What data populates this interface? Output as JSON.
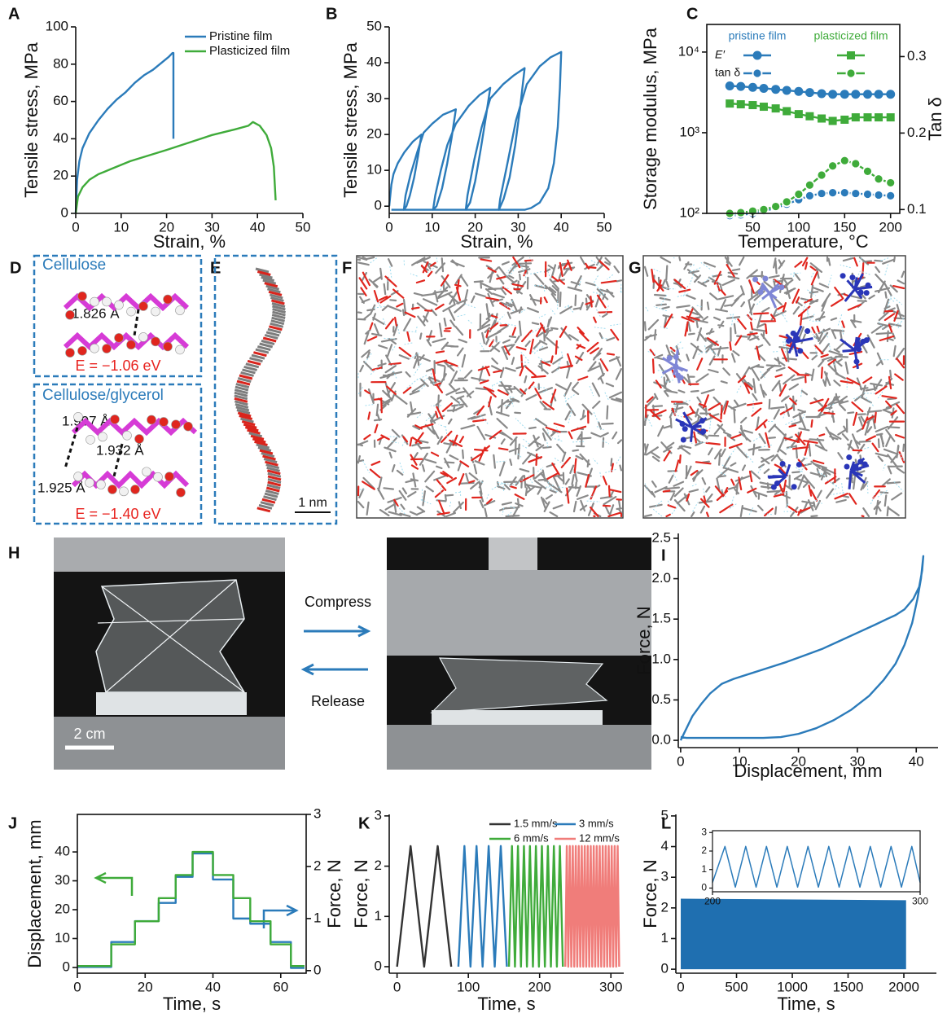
{
  "chart_data": [
    {
      "type": "line",
      "panel": "A",
      "xlabel": "Strain, %",
      "ylabel": "Tensile stress, MPa",
      "xlim": [
        0,
        50
      ],
      "xticks": [
        0,
        10,
        20,
        30,
        40,
        50
      ],
      "ylim": [
        0,
        100
      ],
      "yticks": [
        0,
        20,
        40,
        60,
        80,
        100
      ],
      "legend": "upper right",
      "legend_ncol": 1,
      "series": [
        {
          "name": "Pristine film",
          "color": "#2b7bba",
          "x": [
            0,
            0.3,
            0.8,
            1.5,
            3,
            5,
            7,
            9,
            11,
            13,
            15,
            17,
            19,
            20.5,
            21.3,
            21.5,
            21.5
          ],
          "values": [
            0,
            18,
            28,
            35,
            43,
            50,
            56,
            61,
            65,
            70,
            74,
            77,
            81,
            84,
            86,
            86,
            40
          ]
        },
        {
          "name": "Plasticized film",
          "color": "#3fab3a",
          "x": [
            0,
            0.5,
            1.5,
            3,
            5,
            8,
            12,
            16,
            20,
            25,
            30,
            35,
            38,
            39,
            40.5,
            42,
            43,
            43.6,
            44
          ],
          "values": [
            0,
            9,
            14,
            18,
            21,
            24,
            28,
            31,
            34,
            38,
            42,
            45,
            47,
            49,
            47,
            42,
            35,
            25,
            7
          ]
        }
      ]
    },
    {
      "type": "line",
      "panel": "B",
      "xlabel": "Strain, %",
      "ylabel": "Tensile stress, MPa",
      "xlim": [
        0,
        50
      ],
      "xticks": [
        0,
        10,
        20,
        30,
        40,
        50
      ],
      "ylim": [
        -2,
        50
      ],
      "yticks": [
        0,
        10,
        20,
        30,
        40,
        50
      ],
      "series": [
        {
          "color": "#2b7bba",
          "x": [
            0,
            0.5,
            1,
            2,
            3.5,
            5.5,
            7.5,
            6.7,
            5.8,
            4.8,
            4,
            3.4,
            3.8,
            5,
            6.5,
            8,
            10,
            12.5,
            15.5,
            14.5,
            13.5,
            12.3,
            11,
            10.2,
            10.7,
            12,
            13.5,
            15.5,
            18.5,
            21,
            23.5,
            22.5,
            21.3,
            20,
            18.8,
            17.8,
            18.2,
            19.8,
            21.5,
            23.5,
            26.5,
            29,
            31.5,
            30.5,
            29.3,
            28,
            26.6,
            25.5,
            25.8,
            27.5,
            29.5,
            32,
            35,
            37.5,
            40,
            39.7,
            39.2,
            38.3,
            37,
            35,
            33,
            31.5,
            25,
            15,
            5,
            0.5
          ],
          "values": [
            0,
            6,
            9,
            12,
            15,
            18,
            20,
            14,
            8,
            3,
            0,
            -1,
            3,
            9,
            15,
            20.5,
            23,
            25.5,
            27,
            19,
            12,
            5,
            0,
            -1,
            3,
            10,
            17,
            23,
            28,
            31,
            33,
            25,
            16,
            7,
            1,
            -1,
            3,
            13,
            22,
            30,
            34,
            36.5,
            38.5,
            28,
            17,
            8,
            2,
            -1,
            2,
            12,
            24,
            34,
            39,
            41.5,
            43,
            33,
            22,
            12,
            5,
            1,
            -0.5,
            -1,
            -1,
            -1,
            -1,
            -1
          ]
        }
      ]
    },
    {
      "type": "line",
      "panel": "C",
      "xlabel": "Temperature, °C",
      "ylabel": "Storage modulus, MPa",
      "y2label": "Tan δ",
      "xlim": [
        0,
        210
      ],
      "xticks": [
        50,
        100,
        150,
        200
      ],
      "ylim": [
        100,
        22000
      ],
      "ylog": true,
      "yticks": [
        {
          "value": 100,
          "label": "10²"
        },
        {
          "value": 1000,
          "label": "10³"
        },
        {
          "value": 10000,
          "label": "10⁴"
        }
      ],
      "y2lim": [
        0.095,
        0.342
      ],
      "y2ticks": [
        0.1,
        0.2,
        0.3
      ],
      "legend_header": [
        "pristine film",
        "plasticized film"
      ],
      "legend_rows": [
        "E′",
        "tan δ"
      ],
      "series": [
        {
          "color": "#2b7bba",
          "marker": "circle",
          "x": [
            25,
            37,
            50,
            62,
            75,
            87,
            100,
            112,
            125,
            137,
            150,
            162,
            175,
            187,
            200
          ],
          "values": [
            3800,
            3750,
            3650,
            3550,
            3450,
            3350,
            3250,
            3150,
            3050,
            3000,
            3000,
            3000,
            3000,
            3000,
            3000
          ]
        },
        {
          "color": "#2b7bba",
          "marker": "ring",
          "axis": "y2",
          "x": [
            25,
            37,
            50,
            62,
            75,
            87,
            100,
            112,
            125,
            137,
            150,
            162,
            175,
            187,
            200
          ],
          "values": [
            0.092,
            0.093,
            0.095,
            0.098,
            0.102,
            0.107,
            0.113,
            0.118,
            0.121,
            0.122,
            0.122,
            0.121,
            0.12,
            0.119,
            0.118
          ]
        },
        {
          "color": "#3fab3a",
          "marker": "square",
          "x": [
            25,
            37,
            50,
            62,
            75,
            87,
            100,
            112,
            125,
            137,
            150,
            162,
            175,
            187,
            200
          ],
          "values": [
            2300,
            2250,
            2200,
            2100,
            2000,
            1850,
            1700,
            1600,
            1500,
            1400,
            1450,
            1550,
            1550,
            1550,
            1550
          ]
        },
        {
          "color": "#3fab3a",
          "marker": "ring",
          "axis": "y2",
          "x": [
            25,
            37,
            50,
            62,
            75,
            87,
            100,
            112,
            125,
            137,
            150,
            162,
            175,
            187,
            200
          ],
          "values": [
            0.095,
            0.096,
            0.098,
            0.1,
            0.104,
            0.11,
            0.12,
            0.132,
            0.145,
            0.157,
            0.164,
            0.16,
            0.15,
            0.14,
            0.135
          ]
        }
      ]
    },
    {
      "type": "line",
      "panel": "I",
      "xlabel": "Displacement, mm",
      "ylabel": "Force, N",
      "xlim": [
        -0.4,
        43.7
      ],
      "xticks": [
        0,
        10,
        20,
        30,
        40
      ],
      "ylim": [
        -0.09,
        2.56
      ],
      "yticks": [
        {
          "value": 0,
          "label": "0.0"
        },
        0.5,
        {
          "value": 1,
          "label": "1.0"
        },
        1.5,
        {
          "value": 2,
          "label": "2.0"
        },
        2.5
      ],
      "series": [
        {
          "color": "#2b7bba",
          "x": [
            0,
            1,
            2,
            3.5,
            5,
            7,
            9,
            12,
            15,
            18,
            21,
            24,
            27,
            30,
            33,
            35,
            36.5,
            38,
            39.5,
            40.5,
            41,
            41.2,
            40.8,
            40.2,
            39.3,
            38,
            36.5,
            34.5,
            32,
            29,
            26,
            23,
            20,
            17,
            14,
            10,
            6,
            3,
            1,
            0
          ],
          "values": [
            0,
            0.15,
            0.3,
            0.45,
            0.58,
            0.7,
            0.76,
            0.83,
            0.9,
            0.97,
            1.05,
            1.13,
            1.23,
            1.33,
            1.43,
            1.5,
            1.55,
            1.62,
            1.75,
            1.9,
            2.1,
            2.28,
            2.0,
            1.75,
            1.45,
            1.18,
            0.95,
            0.75,
            0.55,
            0.38,
            0.25,
            0.15,
            0.08,
            0.04,
            0.03,
            0.03,
            0.03,
            0.03,
            0.03,
            0.04
          ]
        }
      ]
    },
    {
      "type": "line",
      "panel": "J",
      "xlabel": "Time, s",
      "ylabel": "Displacement, mm",
      "y2label": "Force, N",
      "xlim": [
        0,
        67.5
      ],
      "xticks": [
        0,
        20,
        40,
        60
      ],
      "ylim": [
        -2,
        53
      ],
      "yticks": [
        0,
        10,
        20,
        30,
        40
      ],
      "y2lim": [
        -0.05,
        3
      ],
      "y2ticks": [
        0,
        1,
        2,
        3
      ],
      "series": [
        {
          "color": "#2b7bba",
          "axis": "y2",
          "x": [
            0,
            10,
            10,
            17,
            17,
            24,
            24,
            29,
            29,
            34,
            34,
            40,
            40,
            46,
            46,
            51,
            51,
            57,
            57,
            63,
            63,
            67
          ],
          "values": [
            0.07,
            0.07,
            0.55,
            0.55,
            0.95,
            0.95,
            1.3,
            1.3,
            1.8,
            1.8,
            2.25,
            2.25,
            1.75,
            1.75,
            1.0,
            1.0,
            0.9,
            0.9,
            0.55,
            0.55,
            0.05,
            0.05
          ]
        },
        {
          "color": "#3fab3a",
          "x": [
            0,
            10,
            10,
            17,
            17,
            24,
            24,
            29,
            29,
            34,
            34,
            40,
            40,
            46,
            46,
            51,
            51,
            57,
            57,
            63,
            63,
            67
          ],
          "values": [
            0.5,
            0.5,
            8,
            8,
            16,
            16,
            24,
            24,
            32,
            32,
            40,
            40,
            32,
            32,
            24,
            24,
            16,
            16,
            8,
            8,
            0.5,
            0.5
          ]
        }
      ]
    },
    {
      "type": "line",
      "panel": "K",
      "xlabel": "Time, s",
      "ylabel": "Force, N",
      "xlim": [
        -11,
        318
      ],
      "xticks": [
        0,
        100,
        200,
        300
      ],
      "ylim": [
        -0.13,
        3.03
      ],
      "yticks": [
        0,
        1,
        2,
        3
      ],
      "legend": "upper right",
      "legend_ncol": 2,
      "series": [
        {
          "name": "1.5 mm/s",
          "color": "#333333",
          "x": [
            0,
            19,
            38,
            57,
            76
          ],
          "values": [
            0,
            2.4,
            0,
            2.4,
            0
          ]
        },
        {
          "name": "3 mm/s",
          "color": "#2b7bba",
          "x": [
            86,
            94.5,
            103,
            111.5,
            120,
            128.5,
            137,
            145.5,
            154
          ],
          "values": [
            0,
            2.4,
            0,
            2.4,
            0,
            2.4,
            0,
            2.4,
            0
          ]
        },
        {
          "name": "6 mm/s",
          "color": "#3fab3a",
          "x": [
            157,
            161.2,
            165.4,
            169.6,
            173.8,
            178,
            182.2,
            186.4,
            190.6,
            194.8,
            199,
            203.2,
            207.4,
            211.6,
            215.8,
            220,
            224.2,
            228.4,
            232.6
          ],
          "values": [
            0,
            2.4,
            0,
            2.4,
            0,
            2.4,
            0,
            2.4,
            0,
            2.4,
            0,
            2.4,
            0,
            2.4,
            0,
            2.4,
            0,
            2.4,
            0
          ]
        },
        {
          "name": "12 mm/s",
          "color": "#f07d7a",
          "x": [
            236,
            238.1,
            240.2,
            242.3,
            244.4,
            246.5,
            248.6,
            250.7,
            252.8,
            254.9,
            257,
            259.1,
            261.2,
            263.3,
            265.4,
            267.5,
            269.6,
            271.7,
            273.8,
            275.9,
            278,
            280.1,
            282.2,
            284.3,
            286.4,
            288.5,
            290.6,
            292.7,
            294.8,
            296.9,
            299,
            301.1,
            303.2,
            305.3,
            307.4,
            309.5,
            311.6
          ],
          "values": [
            0,
            2.4,
            0,
            2.4,
            0,
            2.4,
            0,
            2.4,
            0,
            2.4,
            0,
            2.4,
            0,
            2.4,
            0,
            2.4,
            0,
            2.4,
            0,
            2.4,
            0,
            2.4,
            0,
            2.4,
            0,
            2.4,
            0,
            2.4,
            0,
            2.4,
            0,
            2.4,
            0,
            2.4,
            0,
            2.4,
            0
          ]
        }
      ]
    },
    {
      "type": "area",
      "panel": "L",
      "xlabel": "Time, s",
      "ylabel": "Force, N",
      "xlim": [
        -44,
        2292
      ],
      "xticks": [
        0,
        500,
        1000,
        1500,
        2000
      ],
      "ylim": [
        -0.13,
        5.05
      ],
      "yticks": [
        0,
        1,
        2,
        3,
        4,
        5
      ],
      "series": [
        {
          "color": "#1f6fb0",
          "x": [
            0,
            2020
          ],
          "values": [
            2.3,
            2.25
          ],
          "lower": [
            0,
            0
          ]
        }
      ]
    },
    {
      "type": "line",
      "xlim": [
        200,
        300
      ],
      "xticks": [
        200,
        300
      ],
      "ylim": [
        -0.2,
        3.1
      ],
      "yticks": [
        0,
        1,
        2,
        3
      ],
      "series": [
        {
          "color": "#2b7bba",
          "x": [
            200,
            206,
            211,
            216,
            221,
            226,
            231,
            236,
            241,
            246,
            251,
            256,
            261,
            266,
            271,
            276,
            281,
            286,
            291,
            296,
            300
          ],
          "values": [
            0.3,
            2.25,
            0.05,
            2.25,
            0.05,
            2.25,
            0.05,
            2.25,
            0.05,
            2.25,
            0.05,
            2.25,
            0.05,
            2.25,
            0.05,
            2.25,
            0.05,
            2.25,
            0.05,
            2.25,
            0.3
          ]
        }
      ]
    }
  ],
  "panels": {
    "D": {
      "label": "D",
      "top": {
        "title": "Cellulose",
        "distance": "1.826 Å",
        "energy": "E = −1.06 eV"
      },
      "bottom": {
        "title": "Cellulose/glycerol",
        "distances": [
          "1.907 Å",
          "1.932 Å",
          "1.925 Å"
        ],
        "energy": "E = −1.40 eV"
      }
    },
    "E": {
      "label": "E",
      "scale": "1 nm"
    },
    "F": {
      "label": "F"
    },
    "G": {
      "label": "G"
    },
    "H": {
      "label": "H",
      "compress": "Compress",
      "release": "Release",
      "scale": "2 cm"
    }
  }
}
